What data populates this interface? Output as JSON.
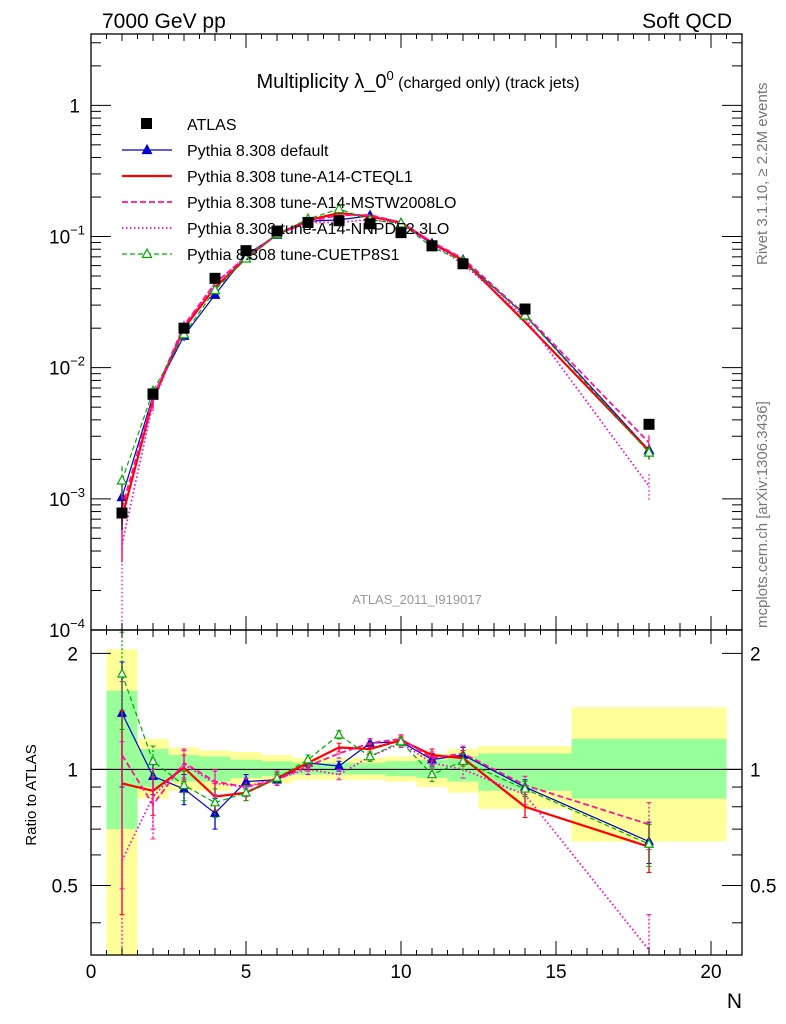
{
  "header": {
    "left": "7000 GeV pp",
    "right": "Soft QCD"
  },
  "side_text": {
    "top": "Rivet 3.1.10, ≥ 2.2M events",
    "bottom": "mcplots.cern.ch [arXiv:1306.3436]"
  },
  "chart_data": {
    "type": "line",
    "title": {
      "main": "Multiplicity λ_0",
      "sup": "0",
      "sub": " (charged only) (track jets)"
    },
    "watermark": "ATLAS_2011_I919017",
    "xlabel": "N",
    "ratio_ylabel": "Ratio to ATLAS",
    "xlim": [
      0,
      21
    ],
    "ylim": [
      0.0001,
      3.5
    ],
    "yscale": "log",
    "ratio_ylim": [
      0.33,
      2.3
    ],
    "x_ticks": [
      "0",
      "5",
      "10",
      "15",
      "20"
    ],
    "y_ticks": [
      {
        "base": "10",
        "exp": "−4"
      },
      {
        "base": "10",
        "exp": "−3"
      },
      {
        "base": "10",
        "exp": "−2"
      },
      {
        "base": "10",
        "exp": "−1"
      },
      {
        "base": "1",
        "exp": ""
      }
    ],
    "ratio_ticks": [
      "0.5",
      "1",
      "2"
    ],
    "legend_position": "top-left",
    "colors": {
      "band_inner": "#99ff99",
      "band_outer": "#ffff99"
    },
    "data": {
      "name": "ATLAS",
      "x": [
        1,
        2,
        3,
        4,
        5,
        6,
        7,
        8,
        9,
        10,
        11,
        12,
        14,
        18
      ],
      "y": [
        0.00078,
        0.0063,
        0.02,
        0.048,
        0.078,
        0.11,
        0.128,
        0.132,
        0.125,
        0.107,
        0.085,
        0.062,
        0.028,
        0.0037
      ],
      "err_y": [
        0.0002,
        0.0006,
        0.0015,
        0.003,
        0.004,
        0.005,
        0.005,
        0.006,
        0.005,
        0.005,
        0.004,
        0.003,
        0.0015,
        0.0003
      ]
    },
    "bands": [
      {
        "x0": 0.5,
        "x1": 1.5,
        "inner": [
          0.7,
          1.6
        ],
        "outer": [
          0.33,
          2.05
        ]
      },
      {
        "x0": 1.5,
        "x1": 2.5,
        "inner": [
          0.9,
          1.13
        ],
        "outer": [
          0.84,
          1.2
        ]
      },
      {
        "x0": 2.5,
        "x1": 3.5,
        "inner": [
          0.93,
          1.09
        ],
        "outer": [
          0.88,
          1.14
        ]
      },
      {
        "x0": 3.5,
        "x1": 4.5,
        "inner": [
          0.93,
          1.08
        ],
        "outer": [
          0.88,
          1.12
        ]
      },
      {
        "x0": 4.5,
        "x1": 5.5,
        "inner": [
          0.95,
          1.06
        ],
        "outer": [
          0.91,
          1.11
        ]
      },
      {
        "x0": 5.5,
        "x1": 6.5,
        "inner": [
          0.96,
          1.05
        ],
        "outer": [
          0.92,
          1.09
        ]
      },
      {
        "x0": 6.5,
        "x1": 7.5,
        "inner": [
          0.97,
          1.04
        ],
        "outer": [
          0.94,
          1.07
        ]
      },
      {
        "x0": 7.5,
        "x1": 8.5,
        "inner": [
          0.97,
          1.04
        ],
        "outer": [
          0.94,
          1.07
        ]
      },
      {
        "x0": 8.5,
        "x1": 9.5,
        "inner": [
          0.97,
          1.04
        ],
        "outer": [
          0.94,
          1.07
        ]
      },
      {
        "x0": 9.5,
        "x1": 10.5,
        "inner": [
          0.96,
          1.05
        ],
        "outer": [
          0.93,
          1.08
        ]
      },
      {
        "x0": 10.5,
        "x1": 11.5,
        "inner": [
          0.95,
          1.06
        ],
        "outer": [
          0.9,
          1.1
        ]
      },
      {
        "x0": 11.5,
        "x1": 12.5,
        "inner": [
          0.93,
          1.08
        ],
        "outer": [
          0.87,
          1.13
        ]
      },
      {
        "x0": 12.5,
        "x1": 15.5,
        "inner": [
          0.88,
          1.1
        ],
        "outer": [
          0.79,
          1.15
        ]
      },
      {
        "x0": 15.5,
        "x1": 20.5,
        "inner": [
          0.84,
          1.2
        ],
        "outer": [
          0.65,
          1.45
        ]
      }
    ],
    "series": [
      {
        "name": "Pythia 8.308 default",
        "color": "#0000cc",
        "dash": "",
        "width": 1.2,
        "marker": "triangle-filled",
        "x": [
          1,
          2,
          3,
          4,
          5,
          6,
          7,
          8,
          9,
          10,
          11,
          12,
          14,
          18
        ],
        "y": [
          0.00103,
          0.0061,
          0.0175,
          0.036,
          0.072,
          0.103,
          0.131,
          0.134,
          0.144,
          0.126,
          0.088,
          0.066,
          0.0252,
          0.00235
        ],
        "ratio": [
          1.4,
          0.96,
          0.89,
          0.77,
          0.93,
          0.94,
          1.04,
          1.02,
          1.17,
          1.18,
          1.06,
          1.09,
          0.9,
          0.65
        ],
        "ratio_err": [
          0.5,
          0.1,
          0.08,
          0.07,
          0.04,
          0.03,
          0.03,
          0.03,
          0.03,
          0.03,
          0.04,
          0.05,
          0.04,
          0.08
        ]
      },
      {
        "name": "Pythia 8.308 tune-A14-CTEQL1",
        "color": "#ff0000",
        "dash": "",
        "width": 2.2,
        "marker": "none",
        "x": [
          1,
          2,
          3,
          4,
          5,
          6,
          7,
          8,
          9,
          10,
          11,
          12,
          14,
          18
        ],
        "y": [
          0.00072,
          0.0057,
          0.02,
          0.041,
          0.068,
          0.104,
          0.133,
          0.151,
          0.142,
          0.128,
          0.09,
          0.066,
          0.0223,
          0.00232
        ],
        "ratio": [
          0.92,
          0.88,
          1.01,
          0.85,
          0.87,
          0.95,
          1.04,
          1.14,
          1.13,
          1.19,
          1.09,
          1.07,
          0.8,
          0.63
        ],
        "ratio_err": [
          0.5,
          0.12,
          0.08,
          0.07,
          0.04,
          0.03,
          0.03,
          0.03,
          0.03,
          0.03,
          0.04,
          0.05,
          0.05,
          0.09
        ]
      },
      {
        "name": "Pythia 8.308 tune-A14-MSTW2008LO",
        "color": "#ff1493",
        "dash": "6,3",
        "width": 1.8,
        "marker": "none",
        "x": [
          1,
          2,
          3,
          4,
          5,
          6,
          7,
          8,
          9,
          10,
          11,
          12,
          14,
          18
        ],
        "y": [
          0.00085,
          0.0059,
          0.021,
          0.044,
          0.07,
          0.103,
          0.13,
          0.145,
          0.146,
          0.128,
          0.091,
          0.068,
          0.0255,
          0.00268
        ],
        "ratio": [
          1.09,
          0.81,
          1.04,
          0.93,
          0.9,
          0.94,
          1.02,
          1.1,
          1.17,
          1.2,
          1.07,
          1.1,
          0.91,
          0.72
        ],
        "ratio_err": [
          0.6,
          0.15,
          0.09,
          0.07,
          0.05,
          0.03,
          0.03,
          0.03,
          0.03,
          0.03,
          0.04,
          0.05,
          0.05,
          0.1
        ]
      },
      {
        "name": "Pythia 8.308 tune-A14-NNPDF2.3LO",
        "color": "#ff00cc",
        "dash": "1.5,2.5",
        "width": 1.8,
        "marker": "none",
        "x": [
          1,
          2,
          3,
          4,
          5,
          6,
          7,
          8,
          9,
          10,
          11,
          12,
          14,
          18
        ],
        "y": [
          0.00045,
          0.0054,
          0.0205,
          0.044,
          0.07,
          0.104,
          0.128,
          0.128,
          0.135,
          0.125,
          0.088,
          0.062,
          0.024,
          0.00125
        ],
        "ratio": [
          0.58,
          0.85,
          1.03,
          0.92,
          0.9,
          0.95,
          1.0,
          0.97,
          1.08,
          1.17,
          1.04,
          1.0,
          0.86,
          0.34
        ],
        "ratio_err": [
          0.6,
          0.15,
          0.09,
          0.07,
          0.05,
          0.04,
          0.03,
          0.03,
          0.03,
          0.03,
          0.04,
          0.05,
          0.05,
          0.08
        ]
      },
      {
        "name": "Pythia 8.308 tune-CUETP8S1",
        "color": "#00aa00",
        "dash": "5,3",
        "width": 1.2,
        "marker": "triangle-open",
        "x": [
          1,
          2,
          3,
          4,
          5,
          6,
          7,
          8,
          9,
          10,
          11,
          12,
          14,
          18
        ],
        "y": [
          0.00138,
          0.0066,
          0.018,
          0.039,
          0.068,
          0.104,
          0.136,
          0.162,
          0.134,
          0.126,
          0.083,
          0.065,
          0.025,
          0.00225
        ],
        "ratio": [
          1.77,
          1.05,
          0.91,
          0.82,
          0.87,
          0.95,
          1.06,
          1.23,
          1.08,
          1.18,
          0.97,
          1.05,
          0.89,
          0.64
        ],
        "ratio_err": [
          0.5,
          0.1,
          0.08,
          0.07,
          0.04,
          0.03,
          0.03,
          0.03,
          0.03,
          0.03,
          0.04,
          0.05,
          0.04,
          0.08
        ]
      }
    ]
  }
}
